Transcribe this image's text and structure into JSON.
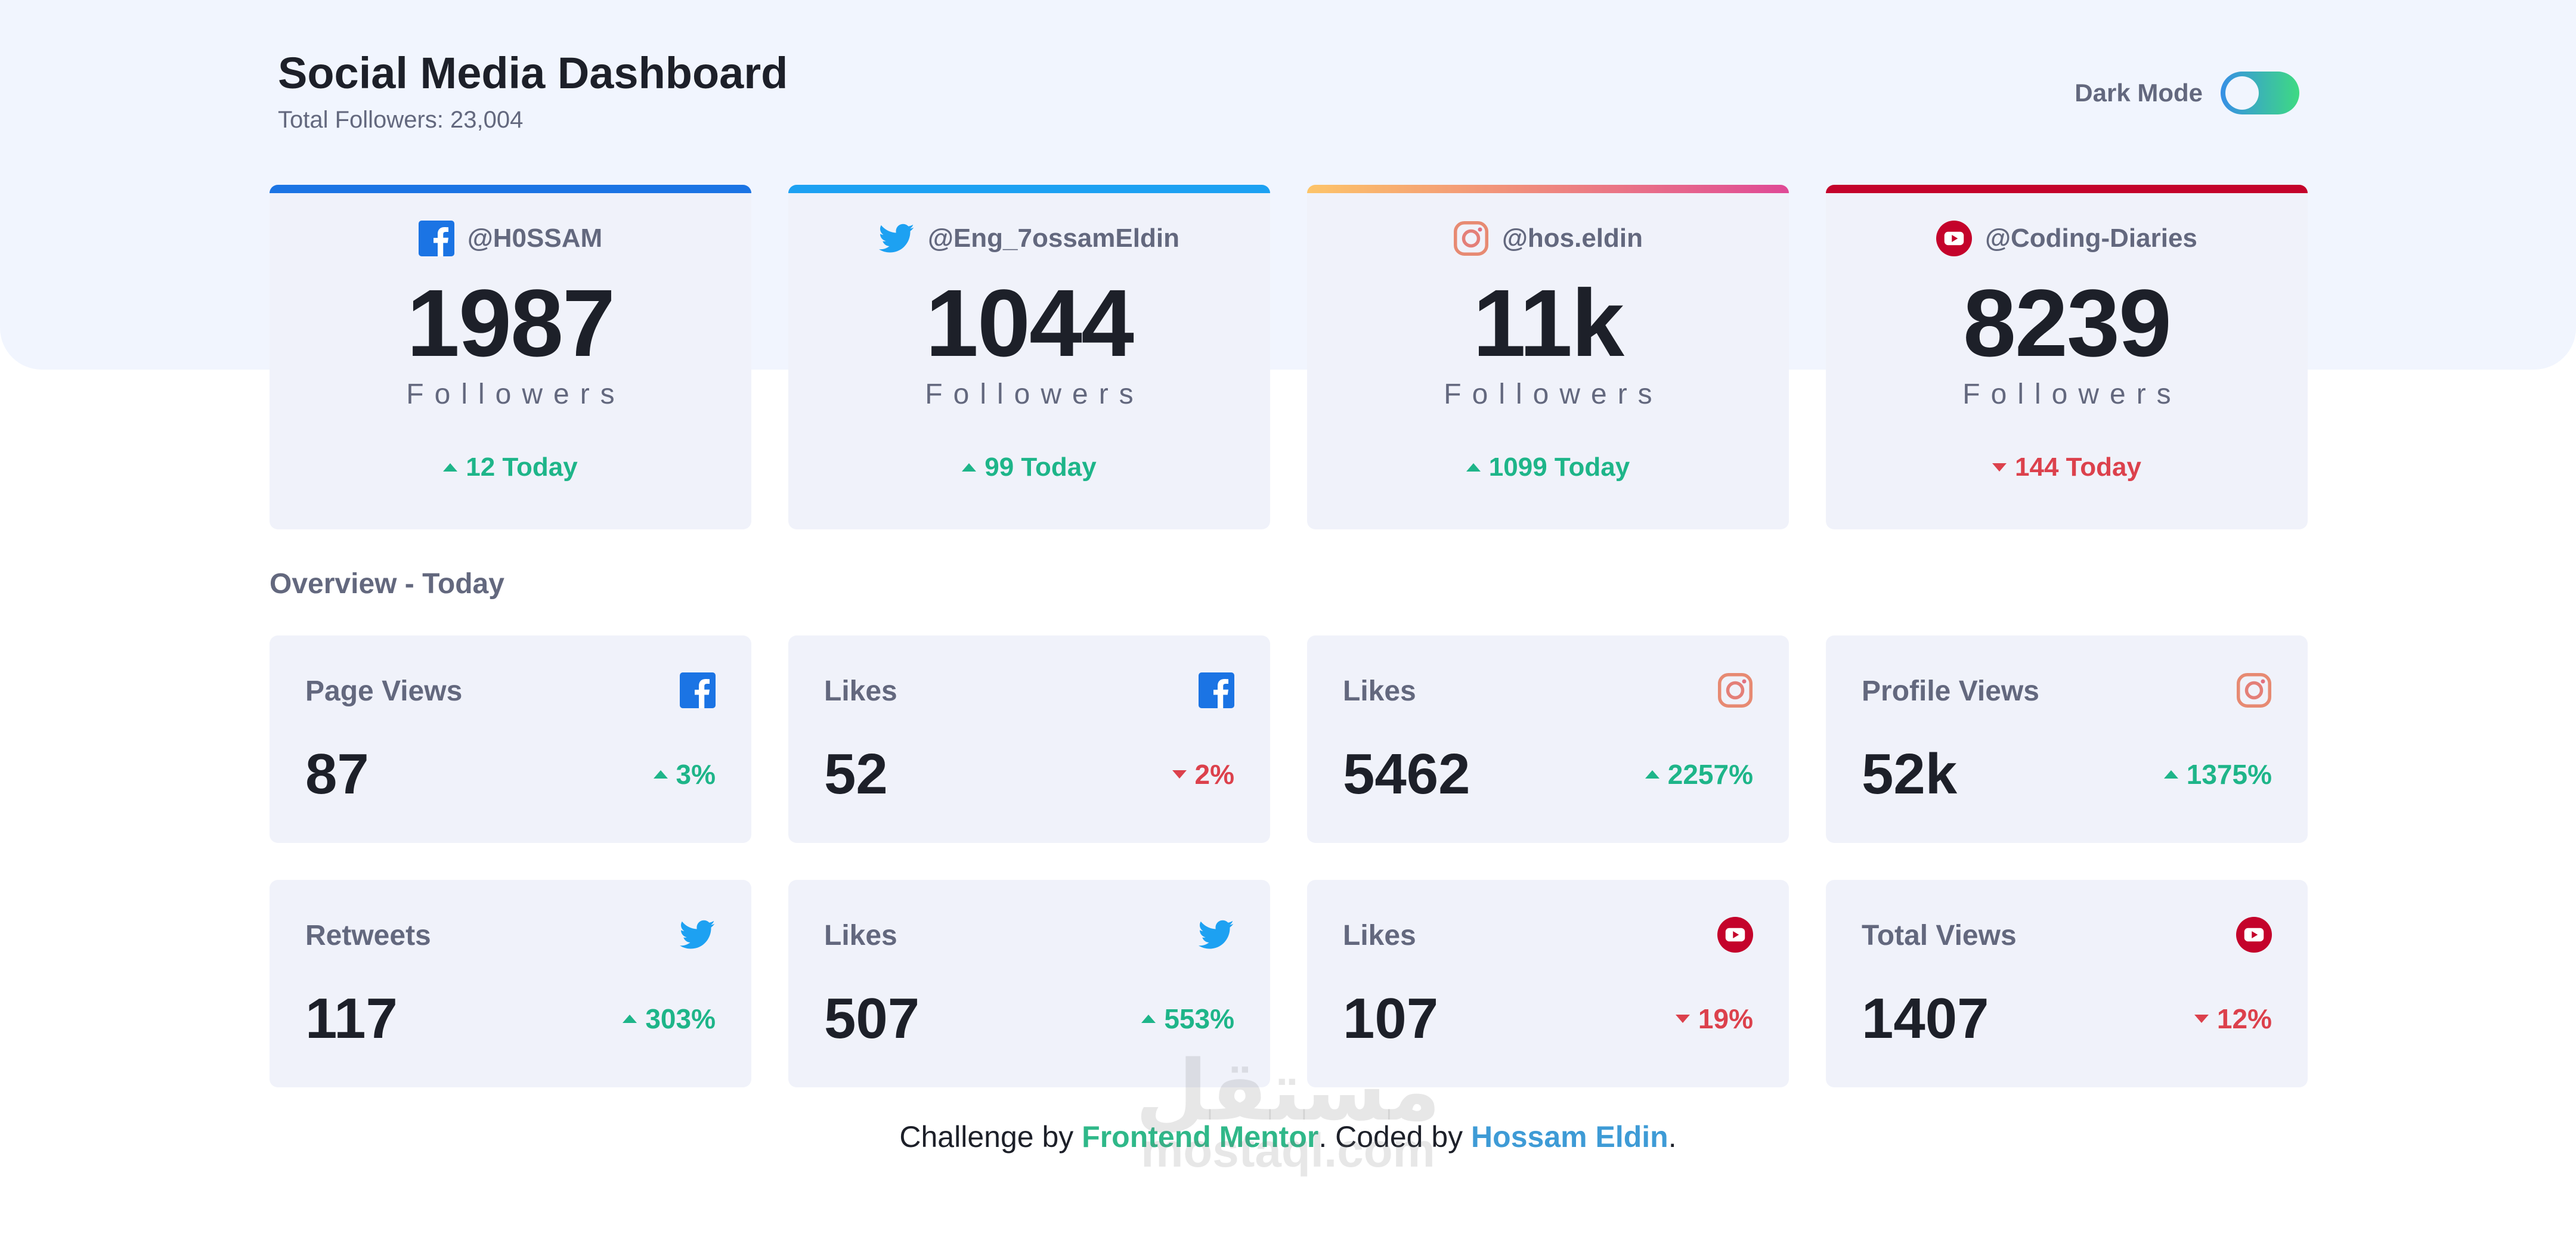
{
  "header": {
    "title": "Social Media Dashboard",
    "subtitle": "Total Followers: 23,004",
    "dark_mode_label": "Dark Mode"
  },
  "follower_cards": [
    {
      "platform": "facebook",
      "icon": "facebook-icon",
      "handle": "@H0SSAM",
      "count": "1987",
      "label": "Followers",
      "today": "12 Today",
      "trend": "up",
      "accent": "#1b74e4"
    },
    {
      "platform": "twitter",
      "icon": "twitter-icon",
      "handle": "@Eng_7ossamEldin",
      "count": "1044",
      "label": "Followers",
      "today": "99 Today",
      "trend": "up",
      "accent": "#1da1f2"
    },
    {
      "platform": "instagram",
      "icon": "instagram-icon",
      "handle": "@hos.eldin",
      "count": "11k",
      "label": "Followers",
      "today": "1099 Today",
      "trend": "up",
      "accent": "#e26089"
    },
    {
      "platform": "youtube",
      "icon": "youtube-icon",
      "handle": "@Coding-Diaries",
      "count": "8239",
      "label": "Followers",
      "today": "144 Today",
      "trend": "down",
      "accent": "#c4032b"
    }
  ],
  "overview": {
    "title": "Overview - Today",
    "items": [
      {
        "label": "Page Views",
        "icon": "facebook-icon",
        "value": "87",
        "change": "3%",
        "trend": "up"
      },
      {
        "label": "Likes",
        "icon": "facebook-icon",
        "value": "52",
        "change": "2%",
        "trend": "down"
      },
      {
        "label": "Likes",
        "icon": "instagram-icon",
        "value": "5462",
        "change": "2257%",
        "trend": "up"
      },
      {
        "label": "Profile Views",
        "icon": "instagram-icon",
        "value": "52k",
        "change": "1375%",
        "trend": "up"
      },
      {
        "label": "Retweets",
        "icon": "twitter-icon",
        "value": "117",
        "change": "303%",
        "trend": "up"
      },
      {
        "label": "Likes",
        "icon": "twitter-icon",
        "value": "507",
        "change": "553%",
        "trend": "up"
      },
      {
        "label": "Likes",
        "icon": "youtube-icon",
        "value": "107",
        "change": "19%",
        "trend": "down"
      },
      {
        "label": "Total Views",
        "icon": "youtube-icon",
        "value": "1407",
        "change": "12%",
        "trend": "down"
      }
    ]
  },
  "footer": {
    "prefix": "Challenge by ",
    "challenge_link": "Frontend Mentor",
    "middle": ". Coded by ",
    "author_link": "Hossam Eldin",
    "suffix": "."
  },
  "watermark": {
    "arabic": "مستقل",
    "latin": "mostaql.com"
  },
  "colors": {
    "up": "#1eb589",
    "down": "#dc414c",
    "card_bg": "#f0f2fa",
    "top_bg": "#f1f5fe"
  }
}
